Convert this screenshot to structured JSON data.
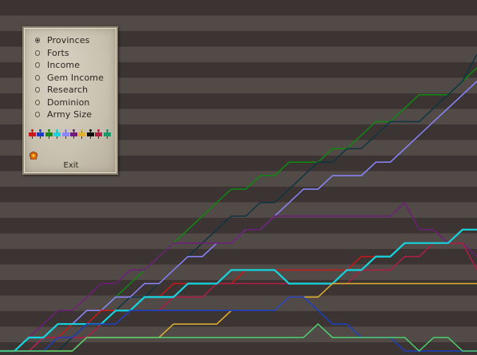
{
  "menu": {
    "options": [
      {
        "label": "Provinces",
        "selected": true
      },
      {
        "label": "Forts",
        "selected": false
      },
      {
        "label": "Income",
        "selected": false
      },
      {
        "label": "Gem Income",
        "selected": false
      },
      {
        "label": "Research",
        "selected": false
      },
      {
        "label": "Dominion",
        "selected": false
      },
      {
        "label": "Army Size",
        "selected": false
      }
    ],
    "exit_label": "Exit"
  },
  "nation_flags": [
    {
      "color": "#c81818",
      "icon": "nation-flag-red"
    },
    {
      "color": "#1c3fc0",
      "icon": "nation-flag-blue"
    },
    {
      "color": "#1a8a1a",
      "icon": "nation-flag-green"
    },
    {
      "color": "#15d6e0",
      "icon": "nation-flag-cyan"
    },
    {
      "color": "#8c86ff",
      "icon": "nation-flag-lavender"
    },
    {
      "color": "#6e1e7a",
      "icon": "nation-flag-purple"
    },
    {
      "color": "#e0b030",
      "icon": "nation-flag-yellow"
    },
    {
      "color": "#101010",
      "icon": "nation-flag-black"
    },
    {
      "color": "#b01e46",
      "icon": "nation-flag-crimson"
    },
    {
      "color": "#1a9a6a",
      "icon": "nation-flag-teal"
    }
  ],
  "player_emblem": {
    "color": "#e06a10",
    "icon": "player-emblem-icon"
  },
  "chart_data": {
    "type": "line",
    "title": "",
    "xlabel": "",
    "ylabel": "",
    "grid": true,
    "xlim": [
      0,
      34
    ],
    "ylim": [
      0,
      22
    ],
    "series": [
      {
        "color": "#0e8a10",
        "values": [
          0,
          0,
          1,
          1,
          1,
          2,
          2,
          3,
          4,
          5,
          6,
          7,
          8,
          9,
          10,
          11,
          12,
          12,
          13,
          13,
          14,
          14,
          14,
          15,
          15,
          16,
          17,
          17,
          18,
          19,
          19,
          19,
          20,
          21
        ]
      },
      {
        "color": "#0e3442",
        "values": [
          0,
          0,
          0,
          0,
          0,
          1,
          2,
          3,
          3,
          4,
          4,
          5,
          6,
          7,
          8,
          9,
          10,
          10,
          11,
          11,
          12,
          13,
          14,
          14,
          15,
          15,
          16,
          17,
          17,
          17,
          18,
          19,
          20,
          22
        ]
      },
      {
        "color": "#8c86ff",
        "values": [
          0,
          0,
          0,
          1,
          2,
          2,
          3,
          3,
          4,
          4,
          5,
          5,
          6,
          7,
          7,
          8,
          8,
          9,
          9,
          10,
          11,
          12,
          12,
          13,
          13,
          13,
          14,
          14,
          15,
          16,
          17,
          18,
          19,
          20
        ]
      },
      {
        "color": "#6e1e7a",
        "values": [
          0,
          0,
          1,
          2,
          3,
          3,
          4,
          5,
          5,
          6,
          6,
          7,
          8,
          8,
          8,
          8,
          8,
          9,
          9,
          10,
          10,
          10,
          10,
          10,
          10,
          10,
          10,
          10,
          11,
          9,
          9,
          8,
          8,
          7
        ]
      },
      {
        "color": "#c81818",
        "values": [
          0,
          0,
          1,
          1,
          1,
          2,
          2,
          3,
          3,
          3,
          4,
          4,
          5,
          5,
          5,
          5,
          5,
          6,
          6,
          6,
          6,
          6,
          6,
          6,
          6,
          7,
          7,
          7,
          8,
          8,
          8,
          8,
          9,
          9
        ]
      },
      {
        "color": "#b01e46",
        "values": [
          0,
          0,
          0,
          1,
          1,
          1,
          1,
          2,
          2,
          3,
          3,
          3,
          4,
          4,
          4,
          5,
          5,
          5,
          5,
          5,
          5,
          5,
          5,
          5,
          5,
          6,
          6,
          6,
          7,
          7,
          8,
          8,
          8,
          6
        ]
      },
      {
        "color": "#15d6e0",
        "values": [
          0,
          0,
          1,
          1,
          2,
          2,
          2,
          2,
          3,
          3,
          4,
          4,
          4,
          5,
          5,
          5,
          6,
          6,
          6,
          6,
          5,
          5,
          5,
          5,
          6,
          6,
          7,
          7,
          8,
          8,
          8,
          8,
          9,
          9
        ]
      },
      {
        "color": "#e0b030",
        "values": [
          0,
          0,
          0,
          0,
          0,
          0,
          1,
          1,
          1,
          1,
          1,
          1,
          2,
          2,
          2,
          2,
          3,
          3,
          3,
          3,
          4,
          4,
          4,
          5,
          5,
          5,
          5,
          5,
          5,
          5,
          5,
          5,
          5,
          5
        ]
      },
      {
        "color": "#1c3fc0",
        "values": [
          0,
          0,
          0,
          0,
          1,
          1,
          2,
          2,
          2,
          3,
          3,
          3,
          3,
          3,
          3,
          3,
          3,
          3,
          3,
          3,
          4,
          4,
          3,
          2,
          2,
          1,
          1,
          1,
          0,
          0,
          0,
          0,
          0,
          0
        ]
      },
      {
        "color": "#4ed070",
        "values": [
          0,
          0,
          0,
          0,
          0,
          0,
          1,
          1,
          1,
          1,
          1,
          1,
          1,
          1,
          1,
          1,
          1,
          1,
          1,
          1,
          1,
          1,
          2,
          1,
          1,
          1,
          1,
          1,
          1,
          0,
          1,
          1,
          0,
          0
        ]
      }
    ]
  }
}
